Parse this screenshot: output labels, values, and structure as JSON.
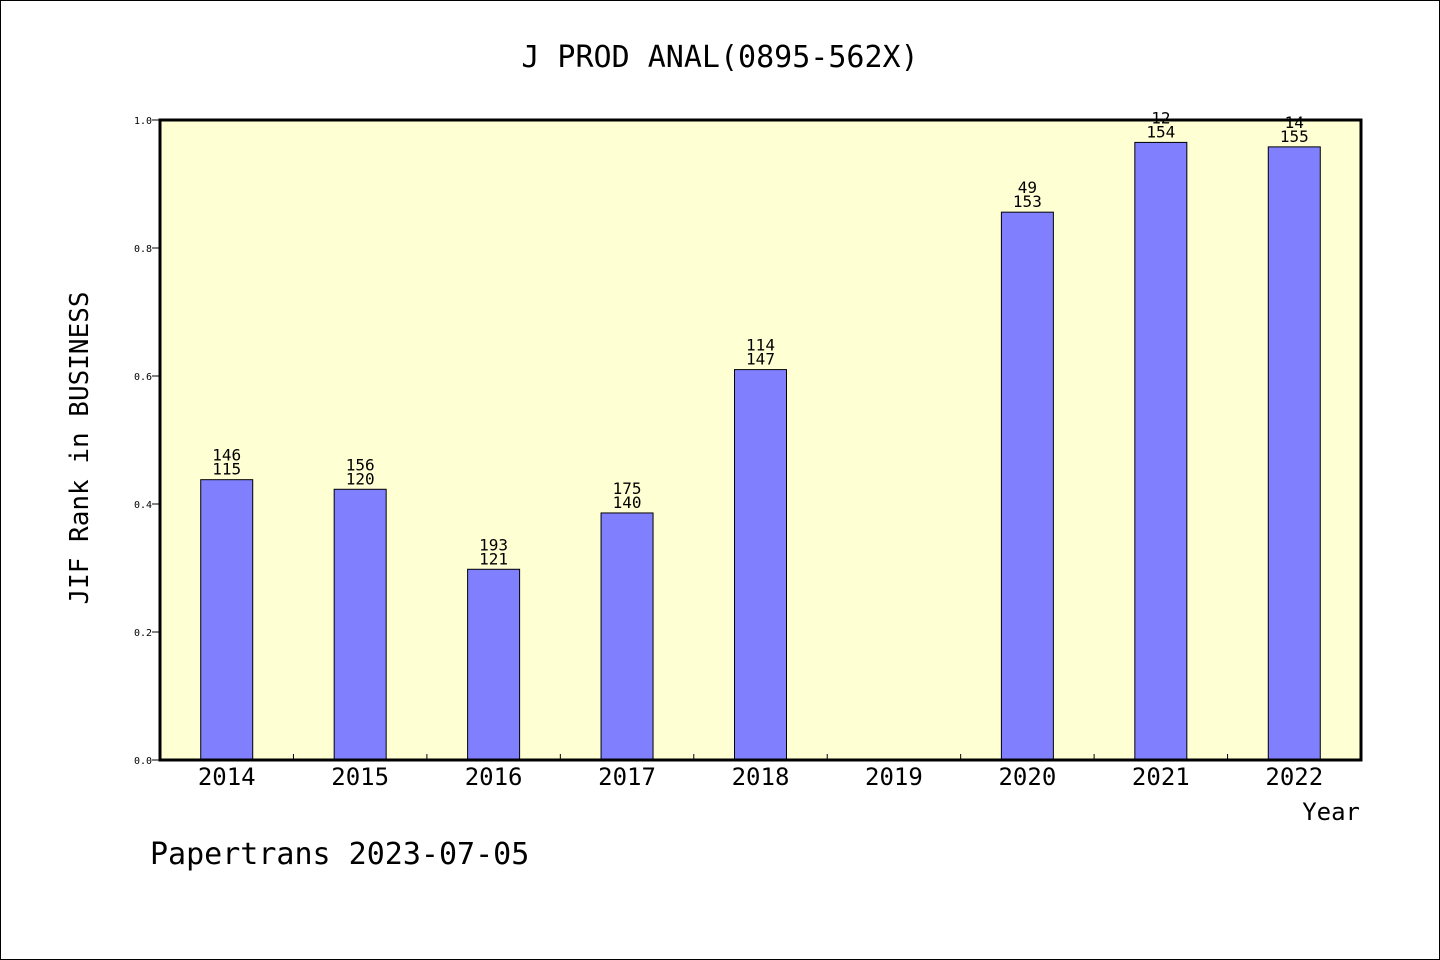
{
  "chart_data": {
    "type": "bar",
    "title": "J PROD ANAL(0895-562X)",
    "xlabel": "Year",
    "ylabel": "JIF Rank in BUSINESS",
    "ylim": [
      0,
      1.0
    ],
    "yticks": [
      "0.0",
      "0.2",
      "0.4",
      "0.6",
      "0.8",
      "1.0"
    ],
    "categories": [
      "2014",
      "2015",
      "2016",
      "2017",
      "2018",
      "2019",
      "2020",
      "2021",
      "2022"
    ],
    "values": [
      0.438,
      0.423,
      0.298,
      0.386,
      0.61,
      null,
      0.856,
      0.965,
      0.958
    ],
    "label_top": [
      "146",
      "156",
      "193",
      "175",
      "114",
      "",
      "49",
      "12",
      "14"
    ],
    "label_bottom": [
      "115",
      "120",
      "121",
      "140",
      "147",
      "",
      "153",
      "154",
      "155"
    ],
    "grid": false,
    "colors": {
      "plot_bg": "#ffffd4",
      "bar": "#8080ff",
      "bar_edge": "#000000"
    }
  },
  "footer": "Papertrans 2023-07-05"
}
